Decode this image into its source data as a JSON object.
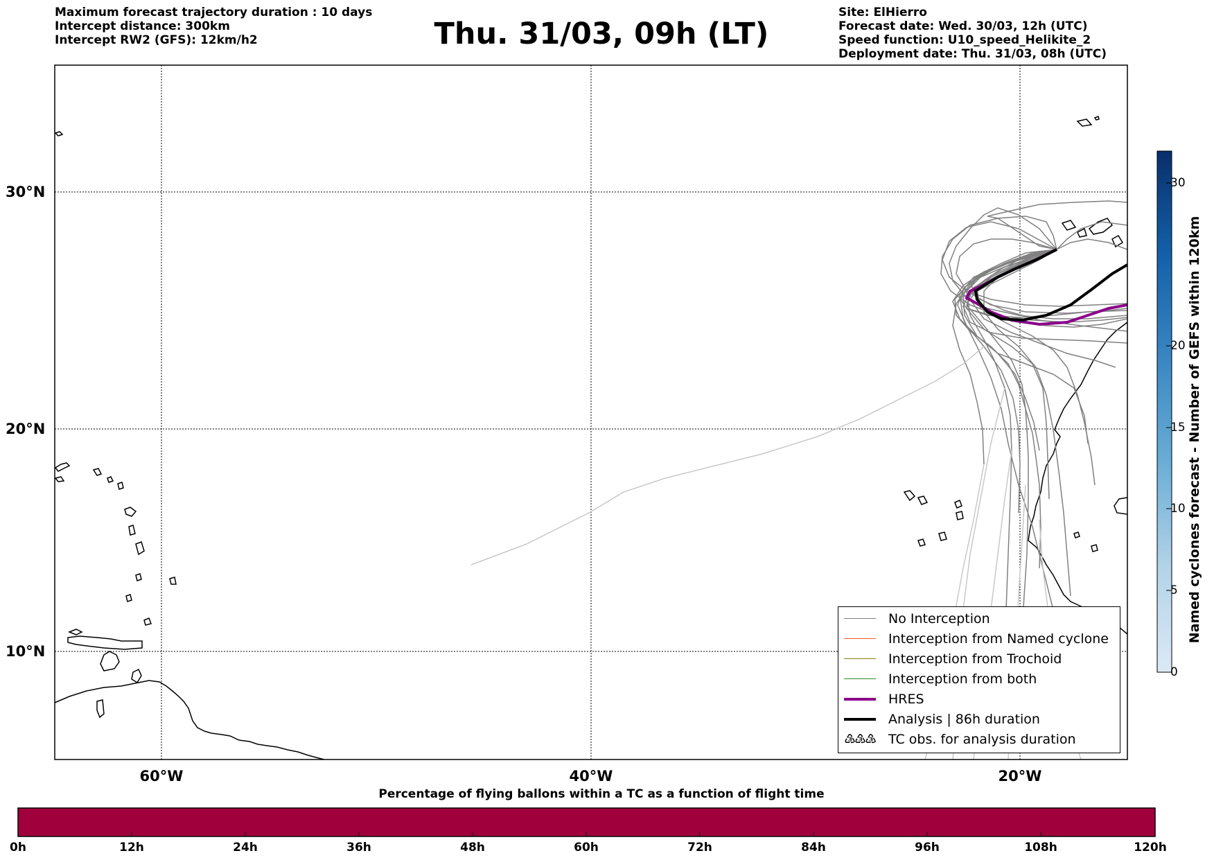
{
  "header_left": [
    "Maximum forecast trajectory duration : 10 days",
    "Intercept distance: 300km",
    "Intercept RW2 (GFS):  12km/h2"
  ],
  "header_right": [
    "Site: ElHierro",
    "Forecast date: Wed. 30/03, 12h (UTC)",
    "Speed function: U10_speed_Helikite_2",
    "Deployment date: Thu. 31/03, 08h (UTC)"
  ],
  "title": "Thu. 31/03, 09h (LT)",
  "map": {
    "lon_range": [
      -65,
      -15
    ],
    "lat_range": [
      5,
      35
    ],
    "grid": true,
    "lat_labels": [
      "30°N",
      "20°N",
      "10°N"
    ],
    "lon_labels": [
      "60°W",
      "40°W",
      "20°W"
    ]
  },
  "legend": {
    "items": [
      {
        "label": "No Interception",
        "color": "#808080"
      },
      {
        "label": "Interception from Named cyclone",
        "color": "#ff5a1e"
      },
      {
        "label": "Interception from Trochoid",
        "color": "#808000"
      },
      {
        "label": "Interception from both",
        "color": "#2a8a2a"
      },
      {
        "label": "HRES",
        "color": "#8b008b"
      },
      {
        "label": "Analysis | 86h duration",
        "color": "#000000"
      }
    ],
    "tc_obs_label": "TC obs. for analysis duration",
    "tc_obs_symbol": "♵♵♵"
  },
  "colorbar": {
    "title": "Named cyclones forecast - Number of GEFS within 120km",
    "ticks": [
      "0",
      "5",
      "10",
      "15",
      "20",
      "30"
    ],
    "low_color": "#dbe9f6",
    "high_color": "#08306b"
  },
  "time_bar": {
    "title": "Percentage of flying ballons within a TC as a function of flight time",
    "ticks": [
      "0h",
      "12h",
      "24h",
      "36h",
      "48h",
      "60h",
      "72h",
      "84h",
      "96h",
      "108h",
      "120h"
    ],
    "color": "#a0003c"
  }
}
